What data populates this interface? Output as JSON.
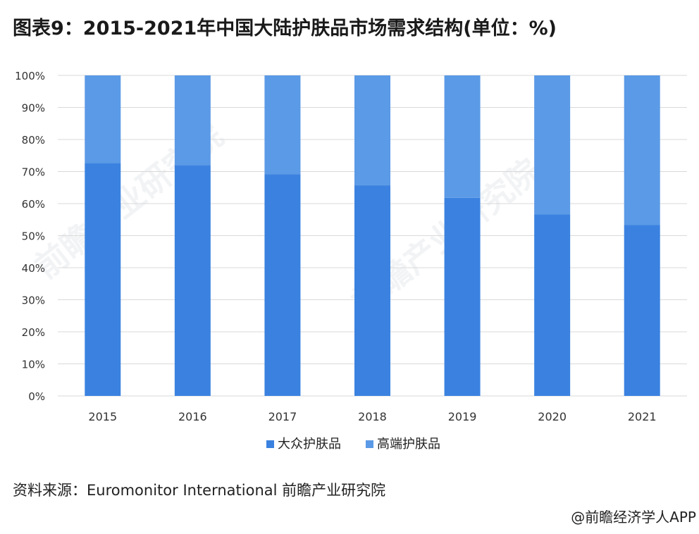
{
  "title": "图表9：2015-2021年中国大陆护肤品市场需求结构(单位：%)",
  "source": "资料来源：Euromonitor International 前瞻产业研究院",
  "credit": "@前瞻经济学人APP",
  "watermark": "前瞻产业研究院",
  "colors": {
    "mass": "#3b82e0",
    "premium": "#5b9ae6",
    "grid": "#d9d9d9",
    "axis_text": "#333333"
  },
  "chart_data": {
    "type": "bar",
    "stacked": true,
    "categories": [
      "2015",
      "2016",
      "2017",
      "2018",
      "2019",
      "2020",
      "2021"
    ],
    "series": [
      {
        "name": "大众护肤品",
        "values": [
          72.7,
          72.0,
          69.2,
          65.7,
          61.8,
          56.6,
          53.3
        ]
      },
      {
        "name": "高端护肤品",
        "values": [
          27.3,
          28.0,
          30.8,
          34.3,
          38.2,
          43.4,
          46.7
        ]
      }
    ],
    "yticks": [
      "0%",
      "10%",
      "20%",
      "30%",
      "40%",
      "50%",
      "60%",
      "70%",
      "80%",
      "90%",
      "100%"
    ],
    "ylim": [
      0,
      100
    ],
    "grid": true,
    "legend": "bottom"
  }
}
